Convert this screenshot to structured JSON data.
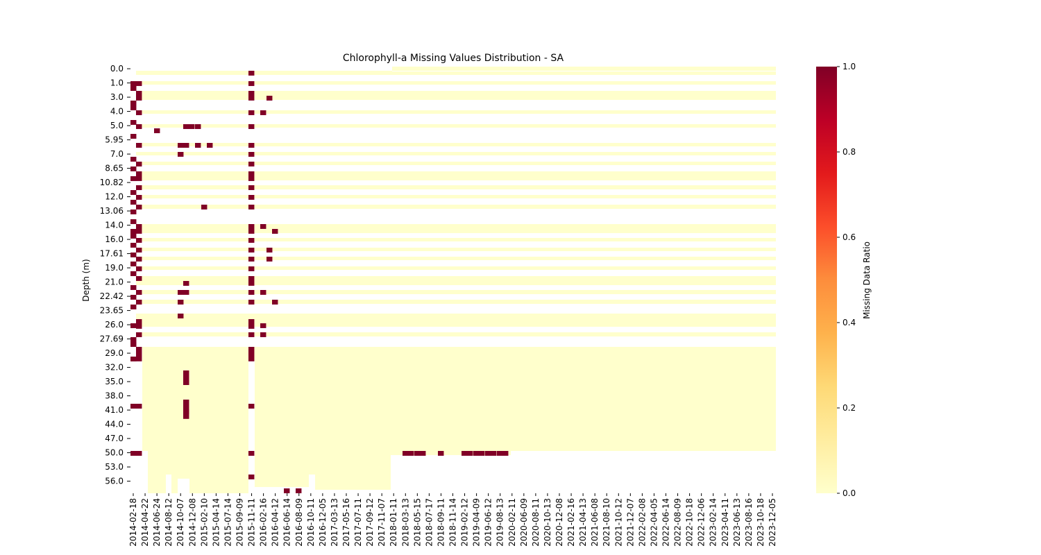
{
  "chart_data": {
    "type": "heatmap",
    "title": "Chlorophyll-a Missing Values Distribution - SA",
    "ylabel": "Depth (m)",
    "xlabel": "",
    "colorbar": {
      "label": "Missing Data Ratio",
      "range": [
        0.0,
        1.0
      ],
      "ticks": [
        "0.0",
        "0.2",
        "0.4",
        "0.6",
        "0.8",
        "1.0"
      ],
      "colors": [
        "#ffffcc",
        "#ffeda0",
        "#fed976",
        "#feb24c",
        "#fd8d3c",
        "#fc4e2a",
        "#e31a1c",
        "#bd0026",
        "#800026"
      ]
    },
    "y_ticks": [
      "0.0",
      "1.0",
      "3.0",
      "4.0",
      "5.0",
      "5.95",
      "7.0",
      "8.65",
      "10.82",
      "12.0",
      "13.06",
      "14.0",
      "16.0",
      "17.61",
      "19.0",
      "21.0",
      "22.42",
      "23.65",
      "26.0",
      "27.69",
      "29.0",
      "32.0",
      "35.0",
      "38.0",
      "41.0",
      "44.0",
      "47.0",
      "50.0",
      "53.0",
      "56.0"
    ],
    "x_ticks": [
      "2014-02-18",
      "2014-04-22",
      "2014-06-24",
      "2014-08-12",
      "2014-10-07",
      "2014-12-08",
      "2015-02-10",
      "2015-04-14",
      "2015-07-14",
      "2015-09-09",
      "2015-11-11",
      "2016-02-16",
      "2016-04-12",
      "2016-06-14",
      "2016-08-09",
      "2016-10-11",
      "2016-12-05",
      "2017-03-13",
      "2017-05-16",
      "2017-07-11",
      "2017-09-12",
      "2017-11-07",
      "2018-01-11",
      "2018-03-13",
      "2018-05-15",
      "2018-07-17",
      "2018-09-11",
      "2018-11-14",
      "2019-02-12",
      "2019-04-09",
      "2019-06-12",
      "2019-08-13",
      "2020-02-11",
      "2020-06-09",
      "2020-08-11",
      "2020-10-13",
      "2020-12-08",
      "2021-02-16",
      "2021-04-13",
      "2021-06-08",
      "2021-08-10",
      "2021-10-12",
      "2021-12-07",
      "2022-02-08",
      "2022-04-05",
      "2022-06-14",
      "2022-08-09",
      "2022-10-18",
      "2022-12-06",
      "2023-02-14",
      "2023-04-11",
      "2023-06-13",
      "2023-08-16",
      "2023-10-18",
      "2023-12-05"
    ],
    "grid": false,
    "missing_value_note": ""
  }
}
